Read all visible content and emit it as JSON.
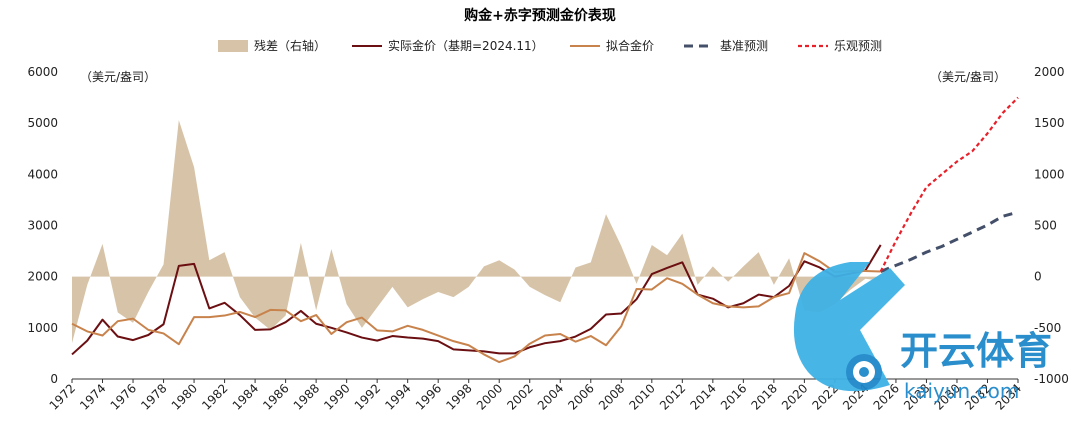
{
  "chart_data": {
    "type": "line",
    "title": "购金+赤字预测金价表现",
    "y_left_unit": "（美元/盎司）",
    "y_right_unit": "（美元/盎司）",
    "ylim_left": [
      0,
      6000
    ],
    "ylim_right": [
      -1000,
      2000
    ],
    "y_ticks_left": [
      "0",
      "1000",
      "2000",
      "3000",
      "4000",
      "5000",
      "6000"
    ],
    "y_ticks_right": [
      "-1000",
      "-500",
      "0",
      "500",
      "1000",
      "1500",
      "2000"
    ],
    "x_range": [
      1972,
      2034
    ],
    "x_ticks": [
      "1972",
      "1974",
      "1976",
      "1978",
      "1980",
      "1982",
      "1984",
      "1986",
      "1988",
      "1990",
      "1992",
      "1994",
      "1996",
      "1998",
      "2000",
      "2002",
      "2004",
      "2006",
      "2008",
      "2010",
      "2012",
      "2014",
      "2016",
      "2018",
      "2020",
      "2022",
      "2024",
      "2026",
      "2028",
      "2030",
      "2032",
      "2034"
    ],
    "legend_position": "top",
    "series": [
      {
        "name": "残差（右轴）",
        "kind": "area",
        "axis": "right",
        "color": "#d7c4a8",
        "x": [
          1972,
          1973,
          1974,
          1975,
          1976,
          1977,
          1978,
          1979,
          1980,
          1981,
          1982,
          1983,
          1984,
          1985,
          1986,
          1987,
          1988,
          1989,
          1990,
          1991,
          1992,
          1993,
          1994,
          1995,
          1996,
          1997,
          1998,
          1999,
          2000,
          2001,
          2002,
          2003,
          2004,
          2005,
          2006,
          2007,
          2008,
          2009,
          2010,
          2011,
          2012,
          2013,
          2014,
          2015,
          2016,
          2017,
          2018,
          2019,
          2020,
          2021,
          2022,
          2023,
          2024,
          2025
        ],
        "values": [
          -650,
          -80,
          320,
          -350,
          -450,
          -150,
          120,
          1530,
          1070,
          160,
          240,
          -200,
          -400,
          -520,
          -380,
          330,
          -330,
          270,
          -270,
          -500,
          -300,
          -100,
          -300,
          -220,
          -150,
          -200,
          -100,
          100,
          160,
          70,
          -100,
          -180,
          -250,
          90,
          140,
          610,
          300,
          -70,
          310,
          210,
          420,
          -80,
          100,
          -50,
          100,
          240,
          -80,
          180,
          -330,
          -350,
          -270,
          -130,
          -20,
          -40
        ]
      },
      {
        "name": "实际金价（基期=2024.11）",
        "kind": "line",
        "axis": "left",
        "color": "#6b0f12",
        "x": [
          1972,
          1973,
          1974,
          1975,
          1976,
          1977,
          1978,
          1979,
          1980,
          1981,
          1982,
          1983,
          1984,
          1985,
          1986,
          1987,
          1988,
          1989,
          1990,
          1991,
          1992,
          1993,
          1994,
          1995,
          1996,
          1997,
          1998,
          1999,
          2000,
          2001,
          2002,
          2003,
          2004,
          2005,
          2006,
          2007,
          2008,
          2009,
          2010,
          2011,
          2012,
          2013,
          2014,
          2015,
          2016,
          2017,
          2018,
          2019,
          2020,
          2021,
          2022,
          2023,
          2024,
          2025
        ],
        "values": [
          480,
          750,
          1160,
          830,
          760,
          860,
          1070,
          2210,
          2250,
          1380,
          1490,
          1250,
          960,
          970,
          1110,
          1330,
          1080,
          1000,
          910,
          810,
          750,
          840,
          810,
          790,
          740,
          580,
          560,
          540,
          500,
          500,
          620,
          700,
          740,
          830,
          980,
          1260,
          1280,
          1560,
          2050,
          2170,
          2280,
          1650,
          1570,
          1400,
          1480,
          1650,
          1600,
          1820,
          2300,
          2180,
          2000,
          2060,
          2120,
          2620
        ]
      },
      {
        "name": "拟合金价",
        "kind": "line",
        "axis": "left",
        "color": "#c8834d",
        "x": [
          1972,
          1973,
          1974,
          1975,
          1976,
          1977,
          1978,
          1979,
          1980,
          1981,
          1982,
          1983,
          1984,
          1985,
          1986,
          1987,
          1988,
          1989,
          1990,
          1991,
          1992,
          1993,
          1994,
          1995,
          1996,
          1997,
          1998,
          1999,
          2000,
          2001,
          2002,
          2003,
          2004,
          2005,
          2006,
          2007,
          2008,
          2009,
          2010,
          2011,
          2012,
          2013,
          2014,
          2015,
          2016,
          2017,
          2018,
          2019,
          2020,
          2021,
          2022,
          2023,
          2024,
          2025
        ],
        "values": [
          1080,
          930,
          850,
          1130,
          1180,
          960,
          890,
          680,
          1210,
          1210,
          1240,
          1310,
          1210,
          1350,
          1340,
          1130,
          1250,
          880,
          1110,
          1200,
          950,
          930,
          1040,
          960,
          850,
          740,
          660,
          480,
          330,
          440,
          690,
          850,
          880,
          730,
          840,
          660,
          1030,
          1760,
          1750,
          1970,
          1860,
          1650,
          1480,
          1420,
          1400,
          1420,
          1600,
          1680,
          2460,
          2300,
          2090,
          2110,
          2110,
          2100
        ]
      },
      {
        "name": "基准预测",
        "kind": "dashed",
        "axis": "left",
        "color": "#44506a",
        "x": [
          2025,
          2026,
          2027,
          2028,
          2029,
          2030,
          2031,
          2032,
          2033,
          2034
        ],
        "values": [
          2100,
          2220,
          2340,
          2480,
          2590,
          2730,
          2870,
          3010,
          3180,
          3260
        ]
      },
      {
        "name": "乐观预测",
        "kind": "dotted",
        "axis": "left",
        "color": "#e8202a",
        "x": [
          2025,
          2026,
          2027,
          2028,
          2029,
          2030,
          2031,
          2032,
          2033,
          2034
        ],
        "values": [
          2100,
          2700,
          3250,
          3750,
          4000,
          4250,
          4450,
          4800,
          5200,
          5500
        ]
      }
    ]
  },
  "watermark": {
    "title": "开云体育",
    "url": "kaiyun.com",
    "logo_letter": "K"
  }
}
